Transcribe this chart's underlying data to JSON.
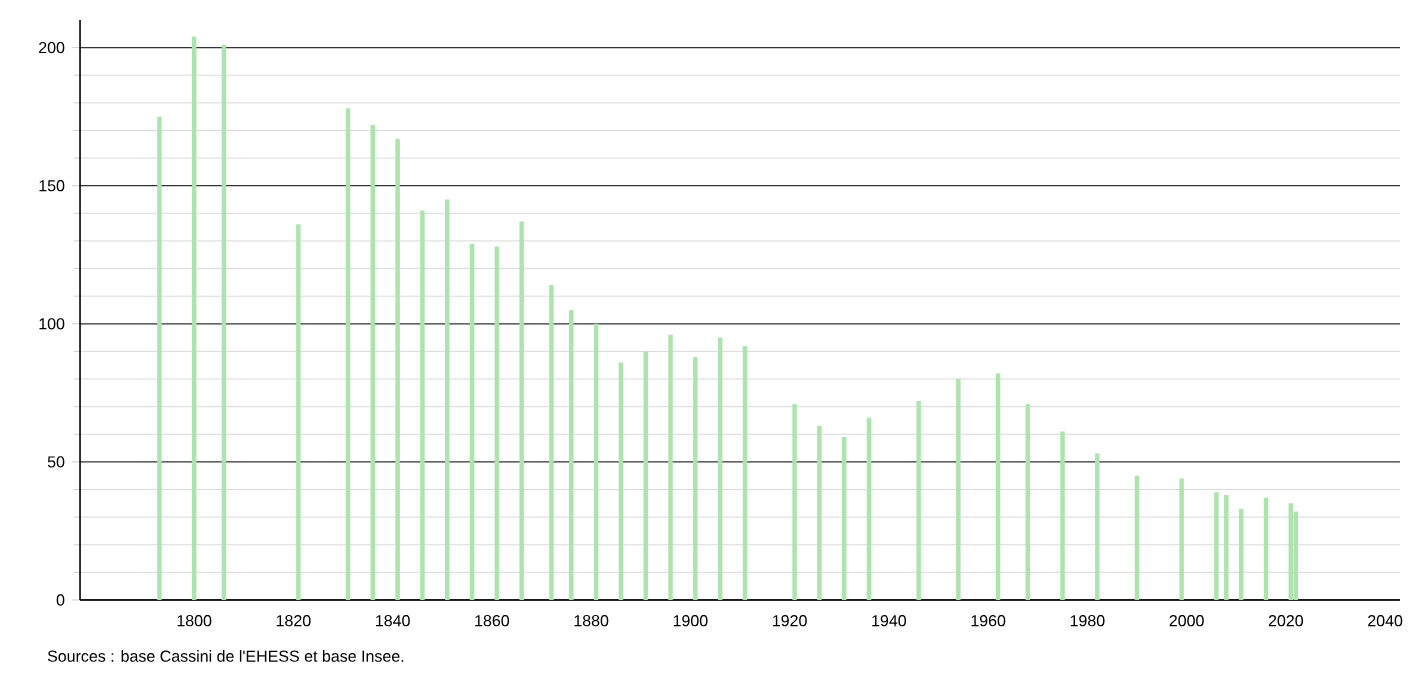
{
  "chart_data": {
    "type": "bar",
    "color": "#ade3ad",
    "x": [
      1793,
      1800,
      1806,
      1821,
      1831,
      1836,
      1841,
      1846,
      1851,
      1856,
      1861,
      1866,
      1872,
      1876,
      1881,
      1886,
      1891,
      1896,
      1901,
      1906,
      1911,
      1921,
      1926,
      1931,
      1936,
      1946,
      1954,
      1962,
      1968,
      1975,
      1982,
      1990,
      1999,
      2006,
      2008,
      2011,
      2016,
      2021,
      2022
    ],
    "values": [
      175,
      204,
      201,
      136,
      178,
      172,
      167,
      141,
      145,
      129,
      128,
      137,
      114,
      105,
      100,
      86,
      90,
      96,
      88,
      95,
      92,
      71,
      63,
      59,
      66,
      72,
      80,
      82,
      71,
      61,
      53,
      45,
      44,
      39,
      38,
      33,
      37,
      35,
      32
    ],
    "xlim": [
      1777,
      2043
    ],
    "xticks": [
      1800,
      1820,
      1840,
      1860,
      1880,
      1900,
      1920,
      1940,
      1960,
      1980,
      2000,
      2020,
      2040
    ],
    "ylim": [
      0,
      210
    ],
    "yticks": [
      0,
      50,
      100,
      150,
      200
    ],
    "grid": "y",
    "annotations": [
      "Sources : base Cassini de l'EHESS et base Insee."
    ]
  }
}
